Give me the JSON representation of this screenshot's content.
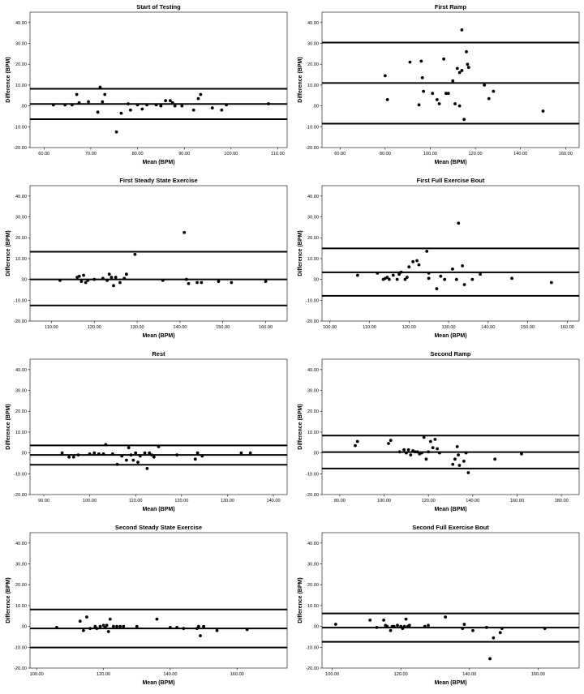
{
  "chart_data": [
    {
      "type": "scatter",
      "title": "Start of Testing",
      "xlabel": "Mean (BPM)",
      "ylabel": "Difference (BPM)",
      "xlim": [
        57,
        112
      ],
      "ylim": [
        -20,
        45
      ],
      "xticks": [
        60,
        70,
        80,
        90,
        100,
        110
      ],
      "xtick_labels": [
        "60.00",
        "70.00",
        "80.00",
        "90.00",
        "100.00",
        "110.00"
      ],
      "yticks": [
        -20,
        -10,
        0,
        10,
        20,
        30,
        40
      ],
      "ytick_labels": [
        "-20.00",
        "-10.00",
        ".00",
        "10.00",
        "20.00",
        "30.00",
        "40.00"
      ],
      "reference_lines": [
        8.2,
        0.9,
        -6.4
      ],
      "points": [
        [
          62,
          0.5
        ],
        [
          64.5,
          0.5
        ],
        [
          66,
          0.5
        ],
        [
          67,
          5.5
        ],
        [
          67.5,
          1.5
        ],
        [
          69.5,
          2
        ],
        [
          71.5,
          -3
        ],
        [
          72,
          9
        ],
        [
          72.5,
          2
        ],
        [
          73,
          5.5
        ],
        [
          75.5,
          -12.5
        ],
        [
          76.5,
          -3.5
        ],
        [
          78,
          1
        ],
        [
          78.5,
          -2
        ],
        [
          80,
          0.5
        ],
        [
          81,
          -1.5
        ],
        [
          82,
          0.5
        ],
        [
          84,
          0.5
        ],
        [
          85,
          0
        ],
        [
          86,
          2.5
        ],
        [
          87,
          2.5
        ],
        [
          87.5,
          1.5
        ],
        [
          88,
          0
        ],
        [
          89.5,
          0
        ],
        [
          92,
          -2
        ],
        [
          93,
          3.5
        ],
        [
          93.5,
          5.5
        ],
        [
          96,
          -1
        ],
        [
          98,
          -2
        ],
        [
          99,
          0.5
        ],
        [
          108,
          1
        ]
      ]
    },
    {
      "type": "scatter",
      "title": "First Ramp",
      "xlabel": "Mean (BPM)",
      "ylabel": "Difference (BPM)",
      "xlim": [
        52,
        166
      ],
      "ylim": [
        -20,
        45
      ],
      "xticks": [
        60,
        80,
        100,
        120,
        140,
        160
      ],
      "xtick_labels": [
        "60.00",
        "80.00",
        "100.00",
        "120.00",
        "140.00",
        "160.00"
      ],
      "yticks": [
        -20,
        -10,
        0,
        10,
        20,
        30,
        40
      ],
      "ytick_labels": [
        "-20.00",
        "-10.00",
        ".00",
        "10.00",
        "20.00",
        "30.00",
        "40.00"
      ],
      "reference_lines": [
        30.4,
        11,
        -8.5
      ],
      "points": [
        [
          80,
          14.5
        ],
        [
          81,
          3
        ],
        [
          91,
          21
        ],
        [
          95,
          0.5
        ],
        [
          96,
          21.5
        ],
        [
          96.5,
          13.5
        ],
        [
          97,
          7
        ],
        [
          101,
          6
        ],
        [
          103,
          3
        ],
        [
          104,
          1
        ],
        [
          106,
          22.5
        ],
        [
          107,
          6
        ],
        [
          108,
          6
        ],
        [
          110,
          12
        ],
        [
          111,
          1
        ],
        [
          112,
          18
        ],
        [
          113,
          16
        ],
        [
          113,
          0
        ],
        [
          114,
          17
        ],
        [
          114,
          36.5
        ],
        [
          115,
          -6.5
        ],
        [
          116,
          26
        ],
        [
          116.5,
          20
        ],
        [
          117,
          18.5
        ],
        [
          124,
          10
        ],
        [
          126,
          3.5
        ],
        [
          128,
          7
        ],
        [
          150,
          -2.5
        ]
      ]
    },
    {
      "type": "scatter",
      "title": "First Steady State Exercise",
      "xlabel": "Mean (BPM)",
      "ylabel": "Difference (BPM)",
      "xlim": [
        105,
        165
      ],
      "ylim": [
        -20,
        45
      ],
      "xticks": [
        110,
        120,
        130,
        140,
        150,
        160
      ],
      "xtick_labels": [
        "110.00",
        "120.00",
        "130.00",
        "140.00",
        "150.00",
        "160.00"
      ],
      "yticks": [
        -20,
        -10,
        0,
        10,
        20,
        30,
        40
      ],
      "ytick_labels": [
        "-20.00",
        "-10.00",
        ".00",
        "10.00",
        "20.00",
        "30.00",
        "40.00"
      ],
      "reference_lines": [
        13.3,
        0,
        -12.5
      ],
      "points": [
        [
          112,
          -0.5
        ],
        [
          116,
          1
        ],
        [
          116.5,
          1.5
        ],
        [
          117,
          -1
        ],
        [
          117.5,
          2
        ],
        [
          118,
          -1.5
        ],
        [
          118.5,
          -0.5
        ],
        [
          120,
          0
        ],
        [
          122,
          0.5
        ],
        [
          123,
          -0.5
        ],
        [
          123.5,
          2.5
        ],
        [
          124,
          1
        ],
        [
          124.5,
          -3
        ],
        [
          125,
          1
        ],
        [
          126,
          -1.5
        ],
        [
          127,
          0.5
        ],
        [
          127.5,
          2.5
        ],
        [
          129.5,
          12
        ],
        [
          136,
          -0.5
        ],
        [
          141,
          22.5
        ],
        [
          141.5,
          0
        ],
        [
          142,
          -2
        ],
        [
          144,
          -1.5
        ],
        [
          145,
          -1.5
        ],
        [
          149,
          -1
        ],
        [
          152,
          -1.5
        ],
        [
          160,
          -1
        ]
      ]
    },
    {
      "type": "scatter",
      "title": "First Full Exercise Bout",
      "xlabel": "Mean (BPM)",
      "ylabel": "Difference (BPM)",
      "xlim": [
        98,
        163
      ],
      "ylim": [
        -20,
        45
      ],
      "xticks": [
        100,
        110,
        120,
        130,
        140,
        150,
        160
      ],
      "xtick_labels": [
        "100.00",
        "110.00",
        "120.00",
        "130.00",
        "140.00",
        "150.00",
        "160.00"
      ],
      "yticks": [
        -20,
        -10,
        0,
        10,
        20,
        30,
        40
      ],
      "ytick_labels": [
        "-20.00",
        "-10.00",
        ".00",
        "10.00",
        "20.00",
        "30.00",
        "40.00"
      ],
      "reference_lines": [
        14.9,
        3.4,
        -7.9
      ],
      "points": [
        [
          107,
          2
        ],
        [
          112,
          3
        ],
        [
          113.5,
          0
        ],
        [
          114,
          0.5
        ],
        [
          114.5,
          1
        ],
        [
          115,
          0
        ],
        [
          116,
          2
        ],
        [
          117,
          0
        ],
        [
          117.5,
          2.5
        ],
        [
          118,
          3.5
        ],
        [
          119,
          0
        ],
        [
          119.5,
          1
        ],
        [
          120,
          6
        ],
        [
          121,
          8.5
        ],
        [
          122,
          9
        ],
        [
          122.5,
          7
        ],
        [
          124.5,
          13.5
        ],
        [
          125,
          3
        ],
        [
          125,
          0.5
        ],
        [
          127,
          -4.5
        ],
        [
          128,
          1.5
        ],
        [
          129,
          0
        ],
        [
          131,
          5
        ],
        [
          132,
          0
        ],
        [
          132.5,
          27
        ],
        [
          133.5,
          6.5
        ],
        [
          134,
          -2.5
        ],
        [
          136,
          0
        ],
        [
          138,
          2.5
        ],
        [
          146,
          0.5
        ],
        [
          156,
          -1.5
        ]
      ]
    },
    {
      "type": "scatter",
      "title": "Rest",
      "xlabel": "Mean (BPM)",
      "ylabel": "Difference (BPM)",
      "xlim": [
        87,
        143
      ],
      "ylim": [
        -20,
        45
      ],
      "xticks": [
        90,
        100,
        110,
        120,
        130,
        140
      ],
      "xtick_labels": [
        "90.00",
        "100.00",
        "110.00",
        "120.00",
        "130.00",
        "140.00"
      ],
      "yticks": [
        -20,
        -10,
        0,
        10,
        20,
        30,
        40
      ],
      "ytick_labels": [
        "-20.00",
        "-10.00",
        ".00",
        "10.00",
        "20.00",
        "30.00",
        "40.00"
      ],
      "reference_lines": [
        3.6,
        -1,
        -5.7
      ],
      "points": [
        [
          94,
          0
        ],
        [
          95.5,
          -2
        ],
        [
          96.5,
          -2
        ],
        [
          97.5,
          -1
        ],
        [
          100,
          -0.5
        ],
        [
          101,
          0
        ],
        [
          102,
          -0.5
        ],
        [
          103,
          -0.5
        ],
        [
          103.5,
          4
        ],
        [
          105,
          -0.5
        ],
        [
          106,
          -5.5
        ],
        [
          107,
          -1.5
        ],
        [
          108,
          -3.5
        ],
        [
          108.5,
          2.5
        ],
        [
          109,
          -1
        ],
        [
          109.5,
          -3.5
        ],
        [
          110,
          0
        ],
        [
          110.5,
          -4.5
        ],
        [
          111,
          -1.5
        ],
        [
          112,
          0
        ],
        [
          112.5,
          -7.5
        ],
        [
          113,
          0
        ],
        [
          113.5,
          -1
        ],
        [
          114,
          -2
        ],
        [
          115,
          3
        ],
        [
          119,
          -1
        ],
        [
          123,
          -3
        ],
        [
          123.5,
          0
        ],
        [
          124.5,
          -1.5
        ],
        [
          133,
          0
        ],
        [
          135,
          0
        ]
      ]
    },
    {
      "type": "scatter",
      "title": "Second Ramp",
      "xlabel": "Mean (BPM)",
      "ylabel": "Difference (BPM)",
      "xlim": [
        72,
        188
      ],
      "ylim": [
        -20,
        45
      ],
      "xticks": [
        80,
        100,
        120,
        140,
        160,
        180
      ],
      "xtick_labels": [
        "80.00",
        "100.00",
        "120.00",
        "140.00",
        "160.00",
        "180.00"
      ],
      "yticks": [
        -20,
        -10,
        0,
        10,
        20,
        30,
        40
      ],
      "ytick_labels": [
        "-20.00",
        "-10.00",
        ".00",
        "10.00",
        "20.00",
        "30.00",
        "40.00"
      ],
      "reference_lines": [
        8.3,
        0.4,
        -7.5
      ],
      "points": [
        [
          87,
          3.5
        ],
        [
          88,
          5.5
        ],
        [
          102,
          4.5
        ],
        [
          103,
          6
        ],
        [
          107,
          0.5
        ],
        [
          109,
          1.5
        ],
        [
          110,
          0
        ],
        [
          111,
          1.5
        ],
        [
          112,
          -1
        ],
        [
          113,
          1
        ],
        [
          114,
          0.5
        ],
        [
          115,
          0.5
        ],
        [
          116,
          -0.5
        ],
        [
          117,
          0
        ],
        [
          118,
          7.5
        ],
        [
          119,
          -3
        ],
        [
          120,
          0.5
        ],
        [
          121,
          5.5
        ],
        [
          122,
          2.5
        ],
        [
          123,
          6.5
        ],
        [
          124,
          2
        ],
        [
          125,
          0
        ],
        [
          131,
          -5.5
        ],
        [
          132,
          -3
        ],
        [
          133,
          3
        ],
        [
          133.5,
          -1
        ],
        [
          134,
          -6
        ],
        [
          136,
          -4
        ],
        [
          137,
          0
        ],
        [
          138,
          -9.5
        ],
        [
          150,
          -3
        ],
        [
          162,
          -0.5
        ]
      ]
    },
    {
      "type": "scatter",
      "title": "Second Steady State Exercise",
      "xlabel": "Mean (BPM)",
      "ylabel": "Difference (BPM)",
      "xlim": [
        98,
        175
      ],
      "ylim": [
        -20,
        45
      ],
      "xticks": [
        100,
        120,
        140,
        160
      ],
      "xtick_labels": [
        "100.00",
        "120.00",
        "140.00",
        "160.00"
      ],
      "yticks": [
        -20,
        -10,
        0,
        10,
        20,
        30,
        40
      ],
      "ytick_labels": [
        "-20.00",
        "-10.00",
        ".00",
        "10.00",
        "20.00",
        "30.00",
        "40.00"
      ],
      "reference_lines": [
        8.1,
        -1,
        -10.1
      ],
      "points": [
        [
          106,
          -0.5
        ],
        [
          113,
          2.5
        ],
        [
          114,
          -2
        ],
        [
          115,
          4.5
        ],
        [
          116,
          -1
        ],
        [
          117.5,
          0
        ],
        [
          118,
          -1
        ],
        [
          119,
          0
        ],
        [
          120,
          0.5
        ],
        [
          120.5,
          -0.5
        ],
        [
          121,
          0.5
        ],
        [
          121.5,
          -2.5
        ],
        [
          122,
          3.5
        ],
        [
          123,
          0
        ],
        [
          124,
          0
        ],
        [
          125,
          0
        ],
        [
          126,
          0
        ],
        [
          130,
          0
        ],
        [
          136,
          3.5
        ],
        [
          140,
          -0.5
        ],
        [
          142,
          -0.5
        ],
        [
          144,
          -1
        ],
        [
          148,
          -1
        ],
        [
          148.5,
          0
        ],
        [
          149,
          -4.5
        ],
        [
          150,
          0
        ],
        [
          154,
          -2
        ],
        [
          163,
          -1.5
        ]
      ]
    },
    {
      "type": "scatter",
      "title": "Second Full Exercise Bout",
      "xlabel": "Mean (BPM)",
      "ylabel": "Difference (BPM)",
      "xlim": [
        97,
        172
      ],
      "ylim": [
        -20,
        45
      ],
      "xticks": [
        100,
        120,
        140,
        160
      ],
      "xtick_labels": [
        "100.00",
        "120.00",
        "140.00",
        "160.00"
      ],
      "yticks": [
        -20,
        -10,
        0,
        10,
        20,
        30,
        40
      ],
      "ytick_labels": [
        "-20.00",
        "-10.00",
        ".00",
        "10.00",
        "20.00",
        "30.00",
        "40.00"
      ],
      "reference_lines": [
        6.2,
        -0.6,
        -7.4
      ],
      "points": [
        [
          101,
          1
        ],
        [
          111,
          3
        ],
        [
          113,
          -0.5
        ],
        [
          115,
          3
        ],
        [
          115.5,
          0.5
        ],
        [
          116,
          0
        ],
        [
          117,
          -2
        ],
        [
          117.5,
          0
        ],
        [
          118,
          0
        ],
        [
          119,
          0.5
        ],
        [
          120,
          0
        ],
        [
          120.5,
          -1
        ],
        [
          121,
          0
        ],
        [
          121.5,
          3.5
        ],
        [
          122,
          0
        ],
        [
          122.5,
          0.5
        ],
        [
          127,
          0
        ],
        [
          128,
          0.5
        ],
        [
          133,
          4.5
        ],
        [
          138,
          -1
        ],
        [
          138.5,
          1
        ],
        [
          141,
          -2
        ],
        [
          145,
          -0.5
        ],
        [
          146,
          -15.5
        ],
        [
          147,
          -5.5
        ],
        [
          149,
          -3
        ],
        [
          149.5,
          -1
        ],
        [
          162,
          -1
        ]
      ]
    }
  ]
}
